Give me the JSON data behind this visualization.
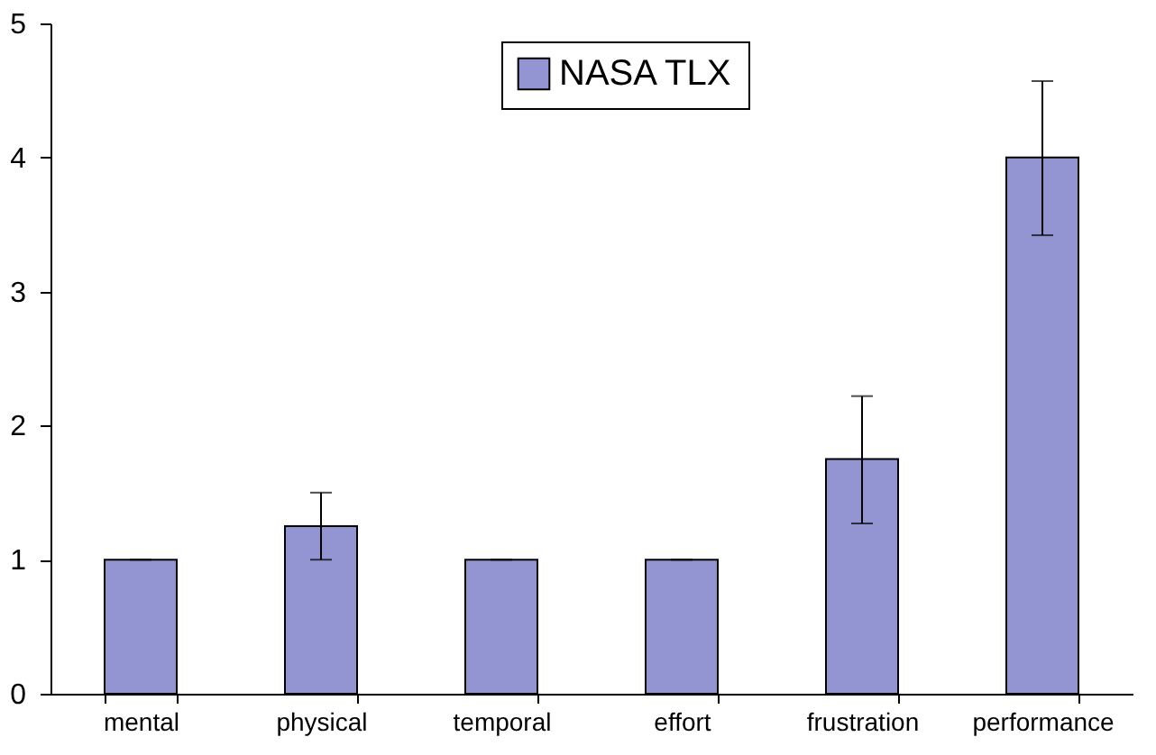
{
  "chart_data": {
    "type": "bar",
    "categories": [
      "mental",
      "physical",
      "temporal",
      "effort",
      "frustration",
      "performance"
    ],
    "series": [
      {
        "name": "NASA TLX",
        "color": "#9395d3",
        "values": [
          1,
          1.25,
          1,
          1,
          1.75,
          4.0
        ],
        "errors": [
          0,
          [
            1.0,
            1.5
          ],
          0,
          0,
          [
            1.27,
            2.22
          ],
          [
            3.42,
            4.57
          ]
        ]
      }
    ],
    "ylim": [
      0,
      5
    ],
    "yticks": [
      0,
      1,
      2,
      3,
      4,
      5
    ],
    "grid": false,
    "legend": "top"
  }
}
